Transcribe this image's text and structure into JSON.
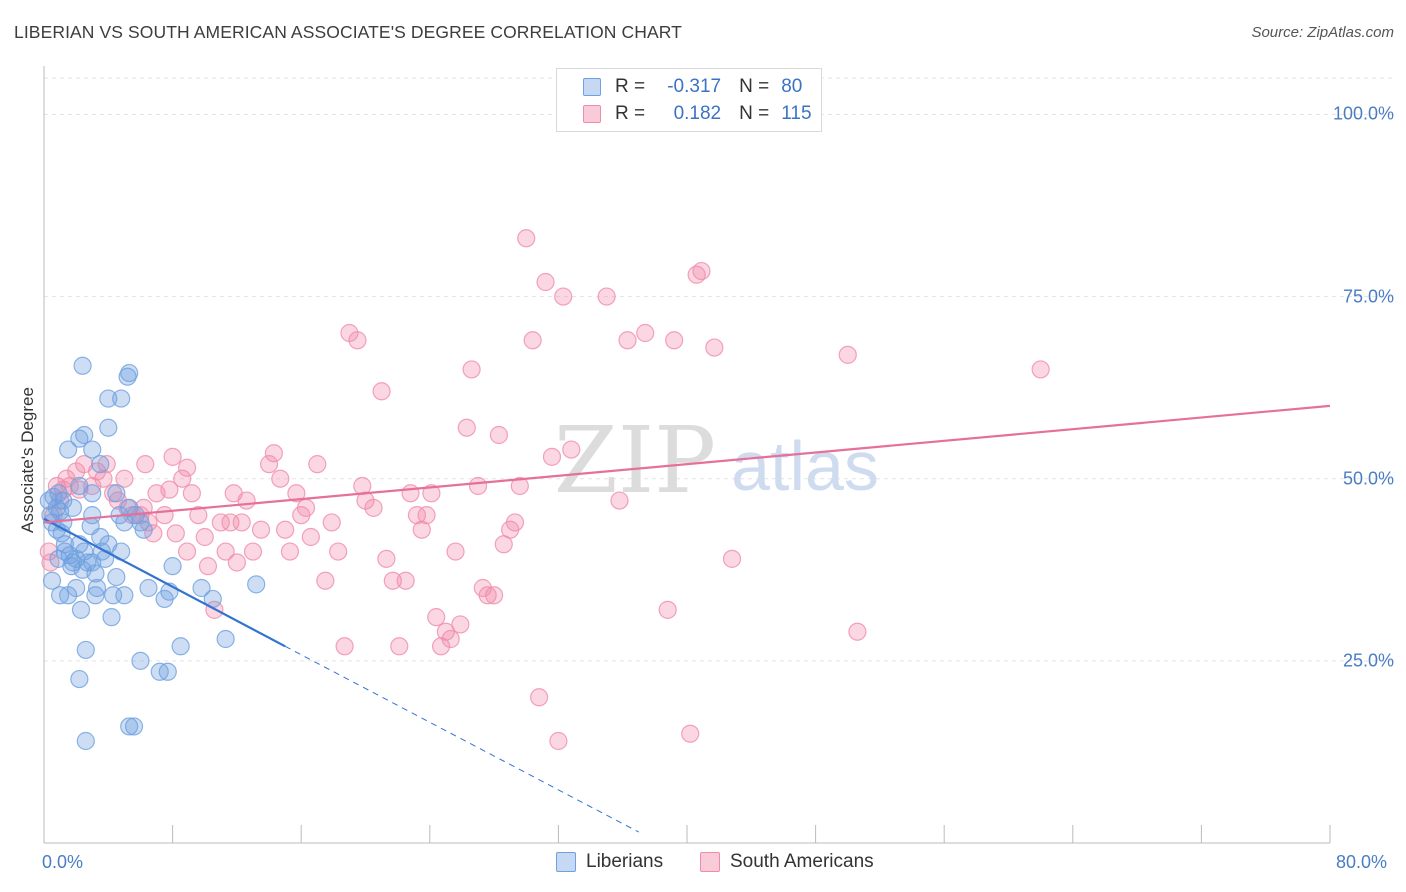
{
  "title": "LIBERIAN VS SOUTH AMERICAN ASSOCIATE'S DEGREE CORRELATION CHART",
  "source": "Source: ZipAtlas.com",
  "watermark": {
    "zip": "ZIP",
    "atlas": "atlas"
  },
  "legend_top": {
    "rows": [
      {
        "r_label": "R =",
        "r_value": "-0.317",
        "n_label": "N =",
        "n_value": "80",
        "color": "#6fa0e0"
      },
      {
        "r_label": "R =",
        "r_value": "0.182",
        "n_label": "N =",
        "n_value": "115",
        "color": "#f08cab"
      }
    ]
  },
  "legend_bottom": [
    "Liberians",
    "South Americans"
  ],
  "colors": {
    "liberians": "#6fa0e0",
    "south_americans": "#f08cab",
    "lib_line": "#3373d1",
    "sa_line": "#e5709a",
    "tick_label": "#4a7cc4"
  },
  "chart_data": {
    "type": "scatter",
    "title": "LIBERIAN VS SOUTH AMERICAN ASSOCIATE'S DEGREE CORRELATION CHART",
    "xlabel": "",
    "ylabel": "Associate's Degree",
    "xlim": [
      0,
      80
    ],
    "ylim": [
      0,
      105
    ],
    "x_tick_labels": [
      "0.0%",
      "80.0%"
    ],
    "y_ticks": [
      25,
      50,
      75,
      100
    ],
    "y_tick_labels": [
      "25.0%",
      "50.0%",
      "75.0%",
      "100.0%"
    ],
    "grid": "horizontal dashed",
    "series": [
      {
        "name": "Liberians",
        "points": [
          [
            0.3,
            47
          ],
          [
            0.4,
            45
          ],
          [
            0.5,
            44
          ],
          [
            0.6,
            47.5
          ],
          [
            0.8,
            46
          ],
          [
            0.9,
            48
          ],
          [
            1.0,
            45.5
          ],
          [
            1.1,
            42.5
          ],
          [
            1.2,
            44
          ],
          [
            1.3,
            41
          ],
          [
            0.5,
            36
          ],
          [
            1.5,
            34
          ],
          [
            0.9,
            39
          ],
          [
            1.6,
            39.5
          ],
          [
            1.0,
            34
          ],
          [
            1.8,
            46
          ],
          [
            2.0,
            39
          ],
          [
            2.2,
            41
          ],
          [
            2.5,
            40
          ],
          [
            2.7,
            38.5
          ],
          [
            1.7,
            38
          ],
          [
            2.0,
            35
          ],
          [
            2.4,
            37.5
          ],
          [
            3.0,
            38.5
          ],
          [
            3.2,
            37
          ],
          [
            3.0,
            45
          ],
          [
            3.5,
            42
          ],
          [
            4.0,
            41
          ],
          [
            3.3,
            35
          ],
          [
            3.8,
            39
          ],
          [
            1.5,
            54
          ],
          [
            2.2,
            55.5
          ],
          [
            2.5,
            56
          ],
          [
            3.0,
            54
          ],
          [
            3.5,
            52
          ],
          [
            4.0,
            57
          ],
          [
            4.5,
            48
          ],
          [
            4.7,
            45
          ],
          [
            5.0,
            44
          ],
          [
            5.3,
            46
          ],
          [
            4.0,
            61
          ],
          [
            4.8,
            61
          ],
          [
            5.2,
            64
          ],
          [
            5.3,
            64.5
          ],
          [
            2.4,
            65.5
          ],
          [
            2.2,
            49
          ],
          [
            3.0,
            48
          ],
          [
            6.0,
            44
          ],
          [
            6.5,
            35
          ],
          [
            7.5,
            33.5
          ],
          [
            7.8,
            34.5
          ],
          [
            8.0,
            38
          ],
          [
            5.0,
            34
          ],
          [
            4.3,
            34
          ],
          [
            4.5,
            36.5
          ],
          [
            3.2,
            34
          ],
          [
            2.3,
            32
          ],
          [
            4.2,
            31
          ],
          [
            6.0,
            25
          ],
          [
            7.2,
            23.5
          ],
          [
            7.7,
            23.5
          ],
          [
            8.5,
            27
          ],
          [
            9.8,
            35
          ],
          [
            10.5,
            33.5
          ],
          [
            11.3,
            28
          ],
          [
            13.2,
            35.5
          ],
          [
            2.6,
            26.5
          ],
          [
            2.2,
            22.5
          ],
          [
            5.3,
            16
          ],
          [
            5.6,
            16
          ],
          [
            2.6,
            14
          ],
          [
            1.8,
            38.5
          ],
          [
            2.9,
            43.5
          ],
          [
            5.7,
            45
          ],
          [
            1.3,
            40
          ],
          [
            0.8,
            43
          ],
          [
            3.6,
            40
          ],
          [
            6.2,
            43
          ],
          [
            4.8,
            40
          ],
          [
            1.2,
            47
          ]
        ]
      },
      {
        "name": "South Americans",
        "points": [
          [
            0.3,
            40
          ],
          [
            0.4,
            38.5
          ],
          [
            0.6,
            45
          ],
          [
            0.8,
            49
          ],
          [
            1.0,
            47
          ],
          [
            1.2,
            48.5
          ],
          [
            1.4,
            50
          ],
          [
            1.6,
            49
          ],
          [
            2.0,
            51
          ],
          [
            2.2,
            48.5
          ],
          [
            2.5,
            52
          ],
          [
            3.0,
            49
          ],
          [
            3.3,
            51
          ],
          [
            3.7,
            50
          ],
          [
            3.9,
            52
          ],
          [
            4.3,
            48
          ],
          [
            4.6,
            47
          ],
          [
            5.0,
            50
          ],
          [
            5.2,
            46
          ],
          [
            5.5,
            45
          ],
          [
            6.0,
            45
          ],
          [
            6.2,
            46
          ],
          [
            6.5,
            44
          ],
          [
            6.8,
            42.5
          ],
          [
            7.0,
            48
          ],
          [
            7.5,
            45
          ],
          [
            7.8,
            48.5
          ],
          [
            8.0,
            53
          ],
          [
            8.2,
            42.5
          ],
          [
            8.6,
            50
          ],
          [
            8.9,
            51.5
          ],
          [
            9.2,
            48
          ],
          [
            9.6,
            45
          ],
          [
            10.0,
            42
          ],
          [
            10.2,
            38
          ],
          [
            10.6,
            32
          ],
          [
            11.0,
            44
          ],
          [
            11.3,
            40
          ],
          [
            11.6,
            44
          ],
          [
            12.0,
            38.5
          ],
          [
            12.3,
            44
          ],
          [
            12.6,
            47
          ],
          [
            13.0,
            40
          ],
          [
            13.5,
            43
          ],
          [
            14.0,
            52
          ],
          [
            14.3,
            53.5
          ],
          [
            14.7,
            50
          ],
          [
            15.0,
            43
          ],
          [
            15.3,
            40
          ],
          [
            15.7,
            48
          ],
          [
            16.0,
            45
          ],
          [
            16.3,
            46
          ],
          [
            16.6,
            42
          ],
          [
            17.0,
            52
          ],
          [
            17.5,
            36
          ],
          [
            17.9,
            44
          ],
          [
            18.3,
            40
          ],
          [
            18.7,
            27
          ],
          [
            19.0,
            70
          ],
          [
            19.5,
            69
          ],
          [
            19.8,
            49
          ],
          [
            20.0,
            47
          ],
          [
            20.5,
            46
          ],
          [
            21.0,
            62
          ],
          [
            21.3,
            39
          ],
          [
            21.7,
            36
          ],
          [
            22.1,
            27
          ],
          [
            22.5,
            36
          ],
          [
            22.8,
            48
          ],
          [
            23.2,
            45
          ],
          [
            23.5,
            43
          ],
          [
            23.8,
            45
          ],
          [
            24.1,
            48
          ],
          [
            24.4,
            31
          ],
          [
            24.7,
            27
          ],
          [
            25.0,
            29
          ],
          [
            25.3,
            28
          ],
          [
            25.6,
            40
          ],
          [
            25.9,
            30
          ],
          [
            26.3,
            57
          ],
          [
            26.6,
            65
          ],
          [
            27.0,
            49
          ],
          [
            27.3,
            35
          ],
          [
            27.6,
            34
          ],
          [
            28.0,
            34
          ],
          [
            28.3,
            56
          ],
          [
            28.6,
            41
          ],
          [
            29.0,
            43
          ],
          [
            29.3,
            44
          ],
          [
            29.6,
            49
          ],
          [
            30.0,
            83
          ],
          [
            30.4,
            69
          ],
          [
            30.8,
            20
          ],
          [
            31.2,
            77
          ],
          [
            31.6,
            53
          ],
          [
            32.0,
            14
          ],
          [
            32.3,
            75
          ],
          [
            32.8,
            54
          ],
          [
            35.0,
            75
          ],
          [
            35.8,
            47
          ],
          [
            36.3,
            69
          ],
          [
            37.4,
            70
          ],
          [
            38.8,
            32
          ],
          [
            39.2,
            69
          ],
          [
            40.2,
            15
          ],
          [
            40.6,
            78
          ],
          [
            40.9,
            78.5
          ],
          [
            41.7,
            68
          ],
          [
            42.8,
            39
          ],
          [
            50.0,
            67
          ],
          [
            50.6,
            29
          ],
          [
            62.0,
            65
          ],
          [
            8.9,
            40
          ],
          [
            11.8,
            48
          ],
          [
            6.3,
            52
          ]
        ]
      }
    ],
    "trendlines": [
      {
        "series": "Liberians",
        "x": [
          0,
          15
        ],
        "y": [
          44.5,
          27
        ],
        "dashed_extension_to": [
          37.0,
          1.5
        ]
      },
      {
        "series": "South Americans",
        "x": [
          0,
          80
        ],
        "y": [
          44,
          60
        ]
      }
    ]
  }
}
